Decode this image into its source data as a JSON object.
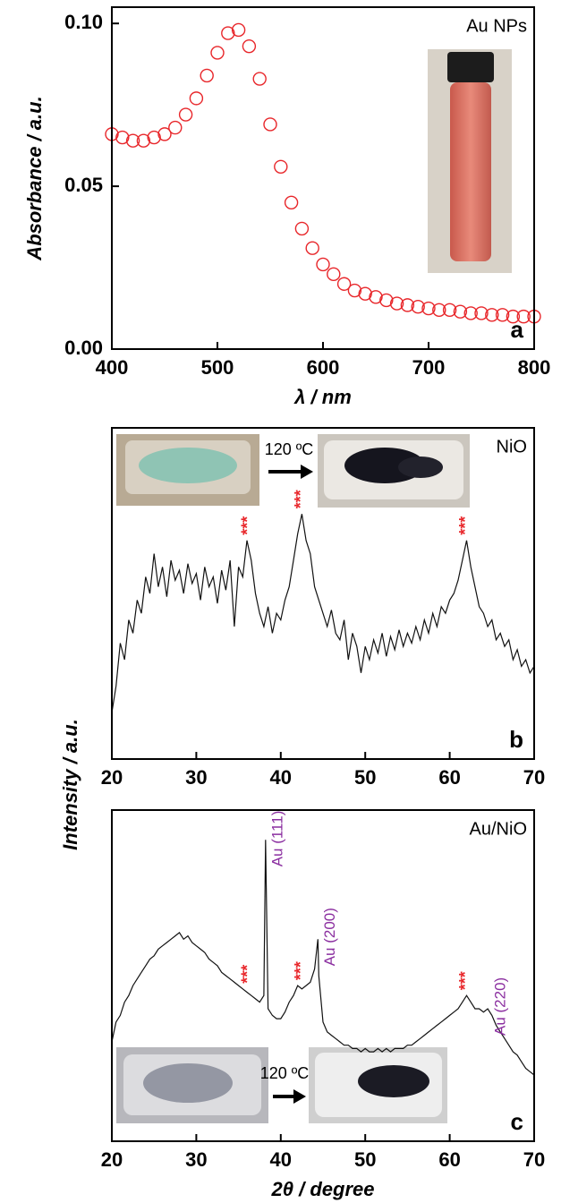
{
  "chart_data": [
    {
      "type": "scatter",
      "ylabel": "Absorbance / a.u.",
      "xlabel": "λ / nm",
      "label": "Au NPs",
      "panel": "a",
      "color": "#e8262a",
      "x": [
        400,
        410,
        420,
        430,
        440,
        450,
        460,
        470,
        480,
        490,
        500,
        510,
        520,
        530,
        540,
        550,
        560,
        570,
        580,
        590,
        600,
        610,
        620,
        630,
        640,
        650,
        660,
        670,
        680,
        690,
        700,
        710,
        720,
        730,
        740,
        750,
        760,
        770,
        780,
        790,
        800
      ],
      "values": [
        0.066,
        0.065,
        0.064,
        0.064,
        0.065,
        0.066,
        0.068,
        0.072,
        0.077,
        0.084,
        0.091,
        0.097,
        0.098,
        0.093,
        0.083,
        0.069,
        0.056,
        0.045,
        0.037,
        0.031,
        0.026,
        0.023,
        0.02,
        0.018,
        0.017,
        0.016,
        0.015,
        0.014,
        0.0135,
        0.013,
        0.0125,
        0.012,
        0.012,
        0.0115,
        0.011,
        0.011,
        0.0105,
        0.0105,
        0.01,
        0.01,
        0.01
      ],
      "xlim": [
        400,
        800
      ],
      "xticks": [
        400,
        500,
        600,
        700,
        800
      ],
      "ylim": [
        0,
        0.105
      ],
      "yticks": [
        {
          "value": 0,
          "label": "0.00"
        },
        {
          "value": 0.05,
          "label": "0.05"
        },
        {
          "value": 0.1,
          "label": "0.10"
        }
      ]
    },
    {
      "type": "line",
      "ylabel": "Intensity / a.u.",
      "label": "NiO",
      "panel": "b",
      "color": "#111111",
      "inset_text": "120 ºC",
      "peak_mark_color": "#e8262a",
      "peak_marks": [
        {
          "text": "***",
          "x": 36.2
        },
        {
          "text": "***",
          "x": 42.5
        },
        {
          "text": "***",
          "x": 62
        }
      ],
      "x": [
        20,
        20.5,
        21,
        21.5,
        22,
        22.5,
        23,
        23.5,
        24,
        24.5,
        25,
        25.5,
        26,
        26.5,
        27,
        27.5,
        28,
        28.5,
        29,
        29.5,
        30,
        30.5,
        31,
        31.5,
        32,
        32.5,
        33,
        33.5,
        34,
        34.5,
        35,
        35.5,
        36,
        36.5,
        37,
        37.5,
        38,
        38.5,
        39,
        39.5,
        40,
        40.5,
        41,
        41.5,
        42,
        42.5,
        43,
        43.5,
        44,
        44.5,
        45,
        45.5,
        46,
        46.5,
        47,
        47.5,
        48,
        48.5,
        49,
        49.5,
        50,
        50.5,
        51,
        51.5,
        52,
        52.5,
        53,
        53.5,
        54,
        54.5,
        55,
        55.5,
        56,
        56.5,
        57,
        57.5,
        58,
        58.5,
        59,
        59.5,
        60,
        60.5,
        61,
        61.5,
        62,
        62.5,
        63,
        63.5,
        64,
        64.5,
        65,
        65.5,
        66,
        66.5,
        67,
        67.5,
        68,
        68.5,
        69,
        69.5,
        70
      ],
      "values": [
        14,
        22,
        35,
        30,
        42,
        38,
        48,
        44,
        55,
        50,
        62,
        52,
        58,
        49,
        60,
        54,
        57,
        50,
        59,
        53,
        56,
        48,
        58,
        52,
        55,
        47,
        57,
        51,
        60,
        40,
        58,
        55,
        66,
        60,
        50,
        44,
        40,
        46,
        38,
        44,
        42,
        48,
        52,
        60,
        68,
        74,
        66,
        62,
        52,
        48,
        44,
        40,
        45,
        38,
        36,
        42,
        30,
        38,
        34,
        26,
        34,
        30,
        36,
        32,
        38,
        31,
        37,
        33,
        39,
        34,
        38,
        35,
        40,
        36,
        42,
        38,
        44,
        40,
        46,
        44,
        48,
        50,
        54,
        60,
        66,
        58,
        52,
        46,
        44,
        40,
        42,
        36,
        38,
        34,
        36,
        30,
        33,
        28,
        30,
        26,
        28
      ],
      "xlim": [
        20,
        70
      ],
      "xticks": [
        20,
        30,
        40,
        50,
        60,
        70
      ],
      "ylim": [
        0,
        100
      ]
    },
    {
      "type": "line",
      "xlabel": "2θ / degree",
      "label": "Au/NiO",
      "panel": "c",
      "color": "#111111",
      "inset_text": "120 ºC",
      "peak_mark_color": "#e8262a",
      "peak_marks": [
        {
          "text": "***",
          "x": 36.2
        },
        {
          "text": "***",
          "x": 42.5
        },
        {
          "text": "***",
          "x": 62
        }
      ],
      "peak_label_color": "#8b2fa0",
      "peak_labels": [
        {
          "text": "Au (111)",
          "x": 38.2
        },
        {
          "text": "Au (200)",
          "x": 44.4
        },
        {
          "text": "Au (220)",
          "x": 64.6
        }
      ],
      "x": [
        20,
        20.5,
        21,
        21.5,
        22,
        22.5,
        23,
        23.5,
        24,
        24.5,
        25,
        25.5,
        26,
        26.5,
        27,
        27.5,
        28,
        28.5,
        29,
        29.5,
        30,
        30.5,
        31,
        31.5,
        32,
        32.5,
        33,
        33.5,
        34,
        34.5,
        35,
        35.5,
        36,
        36.5,
        37,
        37.5,
        38,
        38.2,
        38.5,
        39,
        39.5,
        40,
        40.5,
        41,
        41.5,
        42,
        42.5,
        43,
        43.5,
        44,
        44.4,
        44.5,
        45,
        45.5,
        46,
        46.5,
        47,
        47.5,
        48,
        48.5,
        49,
        49.5,
        50,
        50.5,
        51,
        51.5,
        52,
        52.5,
        53,
        53.5,
        54,
        54.5,
        55,
        55.5,
        56,
        56.5,
        57,
        57.5,
        58,
        58.5,
        59,
        59.5,
        60,
        60.5,
        61,
        61.5,
        62,
        62.5,
        63,
        63.5,
        64,
        64.5,
        65,
        65.5,
        66,
        66.5,
        67,
        67.5,
        68,
        68.5,
        69,
        69.5,
        70
      ],
      "values": [
        30,
        36,
        38,
        42,
        44,
        47,
        49,
        51,
        53,
        55,
        56,
        58,
        59,
        60,
        61,
        62,
        63,
        61,
        62,
        60,
        59,
        58,
        57,
        55,
        54,
        53,
        51,
        50,
        49,
        48,
        47,
        46,
        45,
        44,
        43,
        42,
        44,
        91,
        40,
        38,
        37,
        37,
        39,
        42,
        44,
        47,
        46,
        47,
        48,
        52,
        61,
        50,
        36,
        33,
        32,
        31,
        30,
        29,
        29,
        28,
        28,
        27,
        28,
        27,
        27,
        28,
        27,
        28,
        27,
        28,
        28,
        28,
        29,
        29,
        30,
        31,
        32,
        33,
        34,
        35,
        36,
        37,
        38,
        39,
        40,
        42,
        44,
        42,
        40,
        40,
        39,
        40,
        38,
        35,
        33,
        31,
        29,
        27,
        26,
        24,
        22,
        21,
        20
      ],
      "xlim": [
        20,
        70
      ],
      "xticks": [
        20,
        30,
        40,
        50,
        60,
        70
      ],
      "ylim": [
        0,
        100
      ]
    }
  ]
}
